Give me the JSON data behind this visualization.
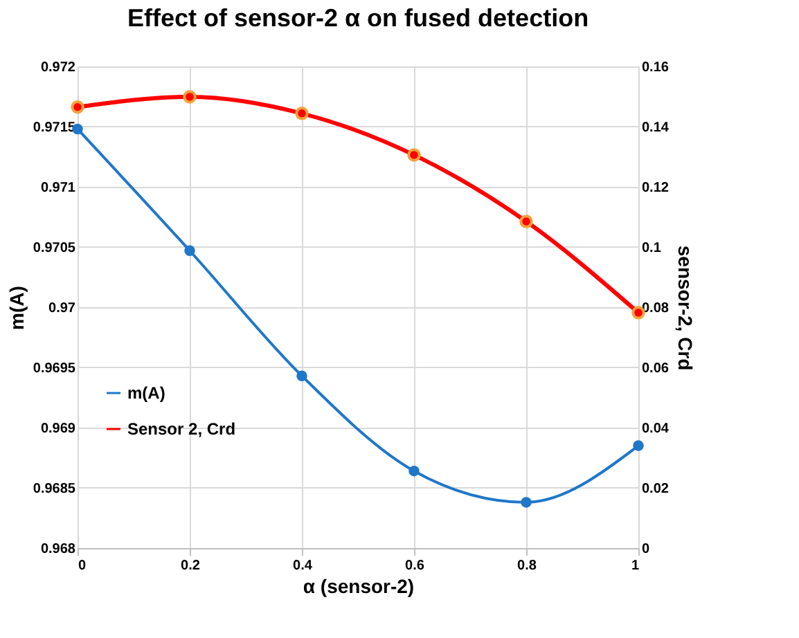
{
  "chart_data": {
    "type": "line",
    "title": "Effect of sensor-2 α on fused detection",
    "xlabel": "α (sensor-2)",
    "ylabel": "m(A)",
    "y2label": "sensor-2, Crd",
    "x": [
      0,
      0.2,
      0.4,
      0.6,
      0.8,
      1
    ],
    "series": [
      {
        "name": "m(A)",
        "color": "#1f77c8",
        "values": [
          0.97148,
          0.97047,
          0.96943,
          0.96864,
          0.96838,
          0.96885
        ]
      },
      {
        "name": "Sensor 2, Crd",
        "color": "#ff0000",
        "axis": "y2",
        "values": [
          0.1465,
          0.1499,
          0.1444,
          0.1306,
          0.1085,
          0.0782
        ]
      }
    ],
    "xlim": [
      0,
      1
    ],
    "xticks": [
      0,
      0.2,
      0.4,
      0.6,
      0.8,
      1
    ],
    "ylim": [
      0.968,
      0.972
    ],
    "yticks": [
      0.968,
      0.9685,
      0.969,
      0.9695,
      0.97,
      0.9705,
      0.971,
      0.9715,
      0.972
    ],
    "y2lim": [
      0,
      0.16
    ],
    "y2ticks": [
      0,
      0.02,
      0.04,
      0.06,
      0.08,
      0.1,
      0.12,
      0.14,
      0.16
    ],
    "grid": true,
    "legend": "bottom left",
    "marker": "circle",
    "line_style": "solid"
  }
}
